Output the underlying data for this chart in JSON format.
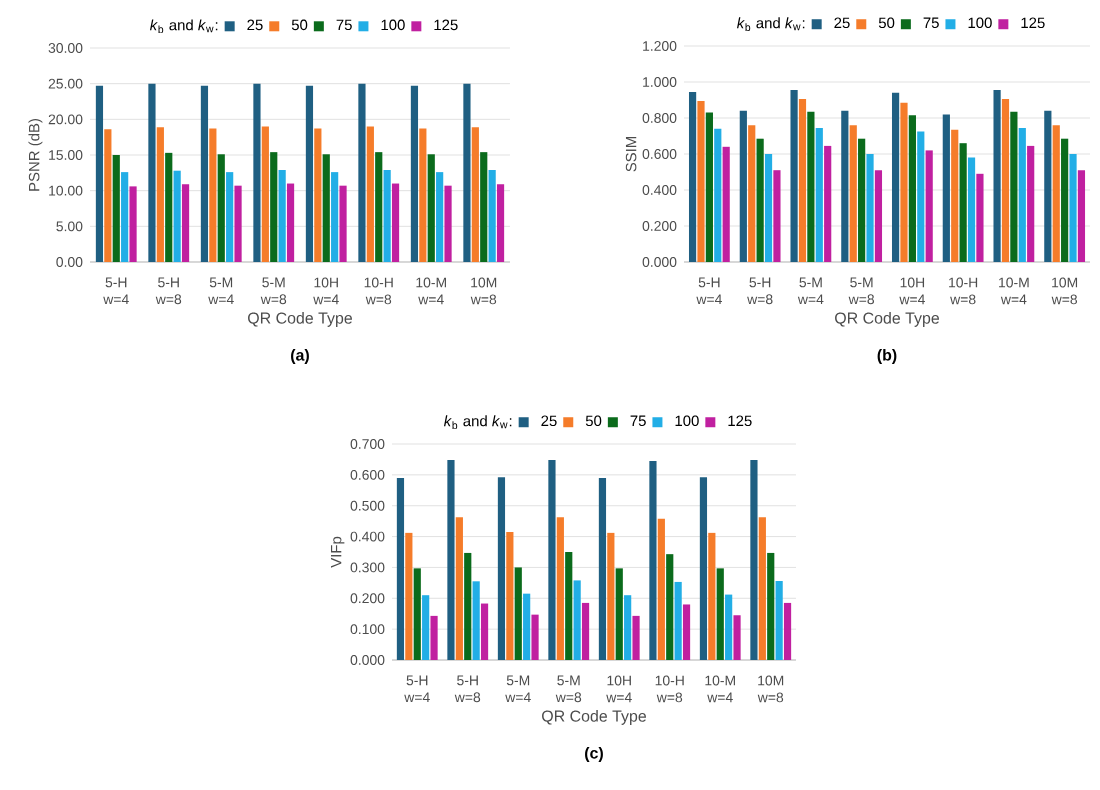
{
  "chart_data": [
    {
      "type": "bar",
      "xlabel": "QR Code Type",
      "ylabel": "PSNR (dB)",
      "legend_title": "*k*$_{b}$ and *k*$_{w}$:",
      "legend": "top",
      "grid": "y",
      "annotations": [
        "(a)"
      ],
      "categories": [
        "5-H w=4",
        "5-H w=8",
        "5-M w=4",
        "5-M w=8",
        "10H w=4",
        "10-H w=8",
        "10-M w=4",
        "10M w=8"
      ],
      "ylim": [
        0,
        30
      ],
      "yticks": [
        {
          "value": 0,
          "label": "0.00"
        },
        {
          "value": 5,
          "label": "5.00"
        },
        {
          "value": 10,
          "label": "10.00"
        },
        {
          "value": 15,
          "label": "15.00"
        },
        {
          "value": 20,
          "label": "20.00"
        },
        {
          "value": 25,
          "label": "25.00"
        },
        {
          "value": 30,
          "label": "30.00"
        }
      ],
      "series": [
        {
          "name": "25",
          "color": "#1f5f82",
          "values": [
            24.7,
            25.0,
            24.7,
            25.0,
            24.7,
            25.0,
            24.7,
            25.0
          ]
        },
        {
          "name": "50",
          "color": "#f57c2a",
          "values": [
            18.6,
            18.9,
            18.7,
            19.0,
            18.7,
            19.0,
            18.7,
            18.9
          ]
        },
        {
          "name": "75",
          "color": "#0b6b1c",
          "values": [
            15.0,
            15.3,
            15.1,
            15.4,
            15.1,
            15.4,
            15.1,
            15.4
          ]
        },
        {
          "name": "100",
          "color": "#22aee6",
          "values": [
            12.6,
            12.8,
            12.6,
            12.9,
            12.6,
            12.9,
            12.6,
            12.9
          ]
        },
        {
          "name": "125",
          "color": "#c020a0",
          "values": [
            10.6,
            10.9,
            10.7,
            11.0,
            10.7,
            11.0,
            10.7,
            10.9
          ]
        }
      ]
    },
    {
      "type": "bar",
      "xlabel": "QR Code Type",
      "ylabel": "SSIM",
      "legend_title": "*k*$_{b}$ and *k*$_{w}$:",
      "legend": "top",
      "grid": "y",
      "annotations": [
        "(b)"
      ],
      "categories": [
        "5-H w=4",
        "5-H w=8",
        "5-M w=4",
        "5-M w=8",
        "10H w=4",
        "10-H w=8",
        "10-M w=4",
        "10M w=8"
      ],
      "ylim": [
        0,
        1.2
      ],
      "yticks": [
        {
          "value": 0,
          "label": "0.000"
        },
        {
          "value": 0.2,
          "label": "0.200"
        },
        {
          "value": 0.4,
          "label": "0.400"
        },
        {
          "value": 0.6,
          "label": "0.600"
        },
        {
          "value": 0.8,
          "label": "0.800"
        },
        {
          "value": 1.0,
          "label": "1.000"
        },
        {
          "value": 1.2,
          "label": "1.200"
        }
      ],
      "series": [
        {
          "name": "25",
          "color": "#1f5f82",
          "values": [
            0.945,
            0.84,
            0.955,
            0.84,
            0.94,
            0.82,
            0.955,
            0.84
          ]
        },
        {
          "name": "50",
          "color": "#f57c2a",
          "values": [
            0.895,
            0.76,
            0.905,
            0.76,
            0.885,
            0.735,
            0.905,
            0.76
          ]
        },
        {
          "name": "75",
          "color": "#0b6b1c",
          "values": [
            0.83,
            0.685,
            0.835,
            0.685,
            0.815,
            0.66,
            0.835,
            0.685
          ]
        },
        {
          "name": "100",
          "color": "#22aee6",
          "values": [
            0.74,
            0.6,
            0.745,
            0.6,
            0.725,
            0.58,
            0.745,
            0.6
          ]
        },
        {
          "name": "125",
          "color": "#c020a0",
          "values": [
            0.64,
            0.51,
            0.645,
            0.51,
            0.62,
            0.49,
            0.645,
            0.51
          ]
        }
      ]
    },
    {
      "type": "bar",
      "xlabel": "QR Code Type",
      "ylabel": "VIFp",
      "legend_title": "*k*$_{b}$ and *k*$_{w}$:",
      "legend": "top",
      "grid": "y",
      "annotations": [
        "(c)"
      ],
      "categories": [
        "5-H w=4",
        "5-H w=8",
        "5-M w=4",
        "5-M w=8",
        "10H w=4",
        "10-H w=8",
        "10-M w=4",
        "10M w=8"
      ],
      "ylim": [
        0,
        0.7
      ],
      "yticks": [
        {
          "value": 0,
          "label": "0.000"
        },
        {
          "value": 0.1,
          "label": "0.100"
        },
        {
          "value": 0.2,
          "label": "0.200"
        },
        {
          "value": 0.3,
          "label": "0.300"
        },
        {
          "value": 0.4,
          "label": "0.400"
        },
        {
          "value": 0.5,
          "label": "0.500"
        },
        {
          "value": 0.6,
          "label": "0.600"
        },
        {
          "value": 0.7,
          "label": "0.700"
        }
      ],
      "series": [
        {
          "name": "25",
          "color": "#1f5f82",
          "values": [
            0.59,
            0.648,
            0.592,
            0.648,
            0.59,
            0.645,
            0.592,
            0.648
          ]
        },
        {
          "name": "50",
          "color": "#f57c2a",
          "values": [
            0.412,
            0.463,
            0.415,
            0.463,
            0.412,
            0.458,
            0.412,
            0.463
          ]
        },
        {
          "name": "75",
          "color": "#0b6b1c",
          "values": [
            0.297,
            0.347,
            0.3,
            0.35,
            0.297,
            0.343,
            0.297,
            0.347
          ]
        },
        {
          "name": "100",
          "color": "#22aee6",
          "values": [
            0.21,
            0.255,
            0.215,
            0.258,
            0.21,
            0.253,
            0.212,
            0.256
          ]
        },
        {
          "name": "125",
          "color": "#c020a0",
          "values": [
            0.143,
            0.183,
            0.147,
            0.185,
            0.143,
            0.18,
            0.145,
            0.185
          ]
        }
      ]
    }
  ]
}
